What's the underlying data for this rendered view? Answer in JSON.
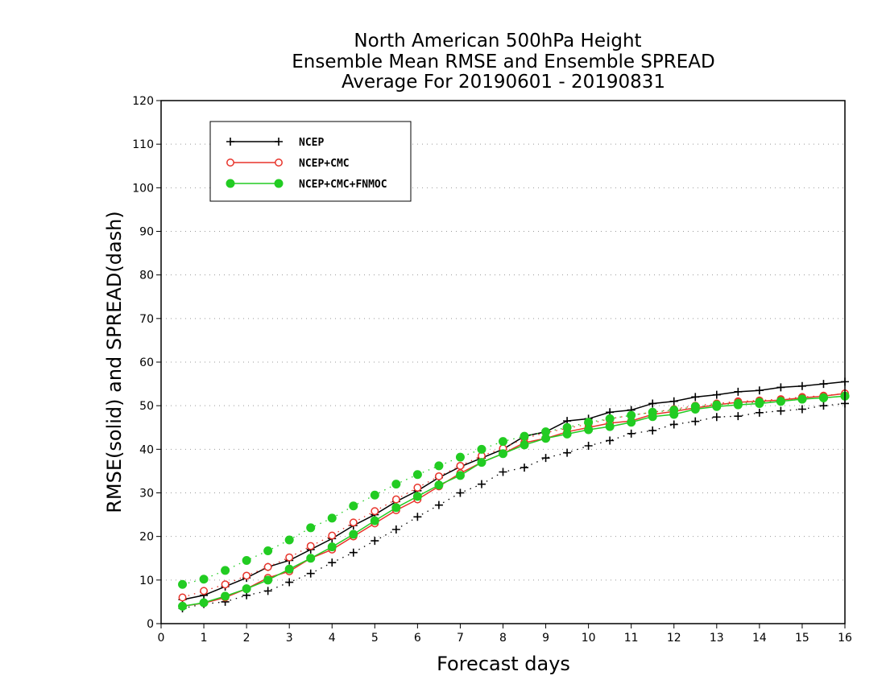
{
  "chart_data": {
    "type": "line",
    "title": [
      "North American 500hPa Height",
      "Ensemble Mean RMSE and Ensemble SPREAD",
      "Average For 20190601 - 20190831"
    ],
    "xlabel": "Forecast days",
    "ylabel": "RMSE(solid) and SPREAD(dash)",
    "xlim": [
      0,
      16
    ],
    "ylim": [
      0,
      120
    ],
    "xticks": [
      0,
      1,
      2,
      3,
      4,
      5,
      6,
      7,
      8,
      9,
      10,
      11,
      12,
      13,
      14,
      15,
      16
    ],
    "yticks": [
      0,
      10,
      20,
      30,
      40,
      50,
      60,
      70,
      80,
      90,
      100,
      110,
      120
    ],
    "grid": "horizontal dotted",
    "legend_placement": "top-left",
    "x": [
      0.5,
      1,
      1.5,
      2,
      2.5,
      3,
      3.5,
      4,
      4.5,
      5,
      5.5,
      6,
      6.5,
      7,
      7.5,
      8,
      8.5,
      9,
      9.5,
      10,
      10.5,
      11,
      11.5,
      12,
      12.5,
      13,
      13.5,
      14,
      14.5,
      15,
      15.5,
      16
    ],
    "series": [
      {
        "name": "NCEP",
        "color": "#000000",
        "marker": "plus",
        "rmse": [
          5.5,
          6.5,
          8.5,
          10.5,
          13,
          14.5,
          17,
          19.5,
          22.5,
          25,
          28,
          30.5,
          33.5,
          36,
          38,
          40,
          43,
          44,
          46.5,
          47,
          48.5,
          49,
          50.5,
          51,
          52,
          52.5,
          53.2,
          53.5,
          54.2,
          54.5,
          55,
          55.5
        ],
        "spread": [
          3.5,
          4.5,
          5,
          6.5,
          7.5,
          9.5,
          11.5,
          14,
          16.3,
          19,
          21.6,
          24.5,
          27.2,
          30,
          32,
          34.8,
          35.8,
          38,
          39.2,
          40.8,
          42,
          43.6,
          44.3,
          45.7,
          46.4,
          47.4,
          47.6,
          48.4,
          48.8,
          49.2,
          50,
          50.5
        ]
      },
      {
        "name": "NCEP+CMC",
        "color": "#e8332a",
        "marker": "open-circle",
        "rmse": [
          4,
          4.7,
          6,
          8,
          10.5,
          12,
          15,
          17,
          20,
          23,
          26,
          28.5,
          31.5,
          34.5,
          37,
          39,
          41.5,
          42.5,
          44,
          45,
          46,
          46.5,
          48,
          48.7,
          49.5,
          50.2,
          50.8,
          51,
          51.3,
          51.8,
          52.2,
          52.8
        ],
        "spread": [
          6,
          7.5,
          9,
          11,
          13,
          15.2,
          17.8,
          20.2,
          23.2,
          25.8,
          28.5,
          31.2,
          33.8,
          36.2,
          38.5,
          40.2,
          42.5,
          43.8,
          44.8,
          45.8,
          47,
          47.8,
          48.5,
          49.2,
          50,
          50.5,
          51,
          51.2,
          51.5,
          52,
          52.3,
          52.8
        ]
      },
      {
        "name": "NCEP+CMC+FNMOC",
        "color": "#22cc22",
        "marker": "filled-circle",
        "rmse": [
          4,
          4.8,
          6.3,
          8,
          10,
          12.5,
          15,
          17.6,
          20.5,
          23.6,
          26.6,
          29.2,
          31.8,
          34,
          37,
          39,
          41,
          42.5,
          43.5,
          44.5,
          45.2,
          46.2,
          47.5,
          48,
          49.2,
          49.8,
          50.2,
          50.5,
          51,
          51.5,
          51.8,
          52.2
        ],
        "spread": [
          9,
          10.2,
          12.2,
          14.5,
          16.7,
          19.2,
          22,
          24.2,
          27,
          29.5,
          32,
          34.2,
          36.2,
          38.2,
          40,
          41.8,
          43,
          44,
          45,
          46.2,
          47,
          47.8,
          48.5,
          49,
          49.8,
          50.2,
          50.5,
          50.8,
          51,
          51.5,
          51.8,
          52.2
        ]
      }
    ]
  }
}
